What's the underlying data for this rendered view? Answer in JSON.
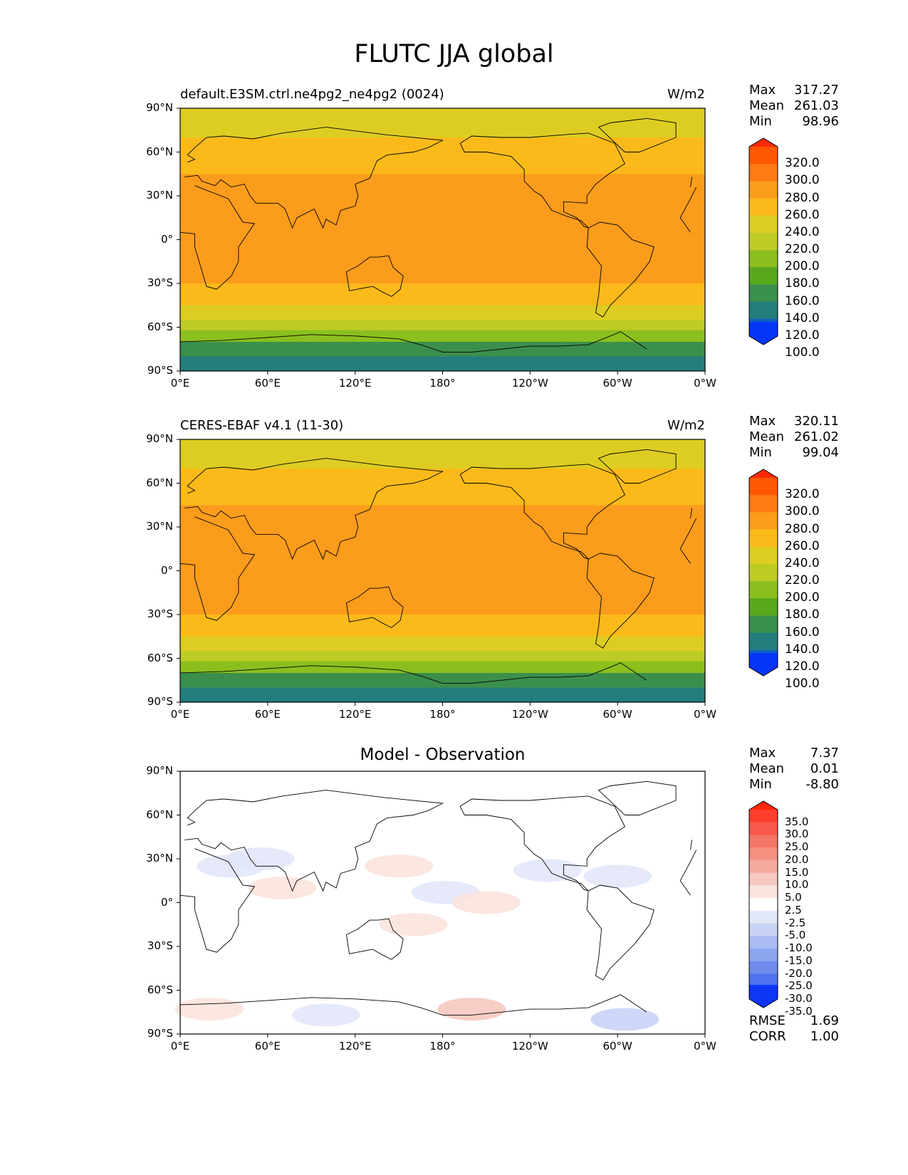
{
  "title": "FLUTC JJA global",
  "chart_data": [
    {
      "type": "heatmap",
      "title": "default.E3SM.ctrl.ne4pg2_ne4pg2 (0024)",
      "units": "W/m2",
      "x_ticks": [
        "0°E",
        "60°E",
        "120°E",
        "180°",
        "120°W",
        "60°W",
        "0°W"
      ],
      "y_ticks": [
        "90°N",
        "60°N",
        "30°N",
        "0°",
        "30°S",
        "60°S",
        "90°S"
      ],
      "xlim": [
        0,
        360
      ],
      "ylim": [
        -90,
        90
      ],
      "stats": [
        {
          "label": "Max",
          "value": "317.27"
        },
        {
          "label": "Mean",
          "value": "261.03"
        },
        {
          "label": "Min",
          "value": "98.96"
        }
      ],
      "colorbar": {
        "levels": [
          "320.0",
          "300.0",
          "280.0",
          "260.0",
          "240.0",
          "220.0",
          "200.0",
          "180.0",
          "160.0",
          "140.0",
          "120.0",
          "100.0"
        ],
        "colors": [
          "#ff2a0a",
          "#ff5800",
          "#fe7a14",
          "#fc9c1c",
          "#fbba1a",
          "#ddcd22",
          "#bfcb25",
          "#8bbf1e",
          "#58a81e",
          "#3b8f4c",
          "#247d7d",
          "#0c61c2",
          "#0536f5"
        ]
      },
      "zonal_mean_bands": [
        {
          "lat_range": [
            70,
            90
          ],
          "value": 225
        },
        {
          "lat_range": [
            45,
            70
          ],
          "value": 245
        },
        {
          "lat_range": [
            10,
            45
          ],
          "value": 265
        },
        {
          "lat_range": [
            -10,
            10
          ],
          "value": 270
        },
        {
          "lat_range": [
            -30,
            -10
          ],
          "value": 268
        },
        {
          "lat_range": [
            -45,
            -30
          ],
          "value": 245
        },
        {
          "lat_range": [
            -55,
            -45
          ],
          "value": 225
        },
        {
          "lat_range": [
            -62,
            -55
          ],
          "value": 210
        },
        {
          "lat_range": [
            -70,
            -62
          ],
          "value": 180
        },
        {
          "lat_range": [
            -80,
            -70
          ],
          "value": 150
        },
        {
          "lat_range": [
            -90,
            -80
          ],
          "value": 120
        }
      ]
    },
    {
      "type": "heatmap",
      "title": "CERES-EBAF v4.1 (11-30)",
      "units": "W/m2",
      "x_ticks": [
        "0°E",
        "60°E",
        "120°E",
        "180°",
        "120°W",
        "60°W",
        "0°W"
      ],
      "y_ticks": [
        "90°N",
        "60°N",
        "30°N",
        "0°",
        "30°S",
        "60°S",
        "90°S"
      ],
      "xlim": [
        0,
        360
      ],
      "ylim": [
        -90,
        90
      ],
      "stats": [
        {
          "label": "Max",
          "value": "320.11"
        },
        {
          "label": "Mean",
          "value": "261.02"
        },
        {
          "label": "Min",
          "value": "99.04"
        }
      ],
      "colorbar": {
        "levels": [
          "320.0",
          "300.0",
          "280.0",
          "260.0",
          "240.0",
          "220.0",
          "200.0",
          "180.0",
          "160.0",
          "140.0",
          "120.0",
          "100.0"
        ],
        "colors": [
          "#ff2a0a",
          "#ff5800",
          "#fe7a14",
          "#fc9c1c",
          "#fbba1a",
          "#ddcd22",
          "#bfcb25",
          "#8bbf1e",
          "#58a81e",
          "#3b8f4c",
          "#247d7d",
          "#0c61c2",
          "#0536f5"
        ]
      },
      "zonal_mean_bands": [
        {
          "lat_range": [
            70,
            90
          ],
          "value": 225
        },
        {
          "lat_range": [
            45,
            70
          ],
          "value": 245
        },
        {
          "lat_range": [
            10,
            45
          ],
          "value": 265
        },
        {
          "lat_range": [
            -10,
            10
          ],
          "value": 270
        },
        {
          "lat_range": [
            -30,
            -10
          ],
          "value": 268
        },
        {
          "lat_range": [
            -45,
            -30
          ],
          "value": 245
        },
        {
          "lat_range": [
            -55,
            -45
          ],
          "value": 225
        },
        {
          "lat_range": [
            -62,
            -55
          ],
          "value": 210
        },
        {
          "lat_range": [
            -70,
            -62
          ],
          "value": 180
        },
        {
          "lat_range": [
            -80,
            -70
          ],
          "value": 150
        },
        {
          "lat_range": [
            -90,
            -80
          ],
          "value": 120
        }
      ]
    },
    {
      "type": "heatmap",
      "title": "Model - Observation",
      "units": "",
      "x_ticks": [
        "0°E",
        "60°E",
        "120°E",
        "180°",
        "120°W",
        "60°W",
        "0°W"
      ],
      "y_ticks": [
        "90°N",
        "60°N",
        "30°N",
        "0°",
        "30°S",
        "60°S",
        "90°S"
      ],
      "xlim": [
        0,
        360
      ],
      "ylim": [
        -90,
        90
      ],
      "stats": [
        {
          "label": "Max",
          "value": "7.37"
        },
        {
          "label": "Mean",
          "value": "0.01"
        },
        {
          "label": "Min",
          "value": "-8.80"
        }
      ],
      "bottom_stats": [
        {
          "label": "RMSE",
          "value": "1.69"
        },
        {
          "label": "CORR",
          "value": "1.00"
        }
      ],
      "colorbar": {
        "levels": [
          "35.0",
          "30.0",
          "25.0",
          "20.0",
          "15.0",
          "10.0",
          "5.0",
          "2.5",
          "-2.5",
          "-5.0",
          "-10.0",
          "-15.0",
          "-20.0",
          "-25.0",
          "-30.0",
          "-35.0"
        ],
        "colors": [
          "#ff2a0a",
          "#fd3e2c",
          "#f8584a",
          "#f47466",
          "#f49080",
          "#f4aa9c",
          "#f6c8bf",
          "#fbe3dd",
          "#ffffff",
          "#e2e7fa",
          "#c9d3f6",
          "#aabcf2",
          "#8ca5ef",
          "#6e8ced",
          "#4f72ee",
          "#2e54f2",
          "#0d36f5"
        ]
      },
      "anomalies": [
        {
          "lon": 35,
          "lat": 25,
          "value": -4
        },
        {
          "lon": 55,
          "lat": 30,
          "value": -4
        },
        {
          "lon": 70,
          "lat": 10,
          "value": 3
        },
        {
          "lon": 150,
          "lat": 25,
          "value": 3
        },
        {
          "lon": 182,
          "lat": 7,
          "value": -3
        },
        {
          "lon": 210,
          "lat": 0,
          "value": 3
        },
        {
          "lon": 160,
          "lat": -15,
          "value": 4
        },
        {
          "lon": 252,
          "lat": 22,
          "value": -3
        },
        {
          "lon": 300,
          "lat": 18,
          "value": -4
        },
        {
          "lon": 20,
          "lat": -73,
          "value": 3
        },
        {
          "lon": 100,
          "lat": -77,
          "value": -3
        },
        {
          "lon": 200,
          "lat": -73,
          "value": 6
        },
        {
          "lon": 305,
          "lat": -80,
          "value": -8
        }
      ]
    }
  ]
}
